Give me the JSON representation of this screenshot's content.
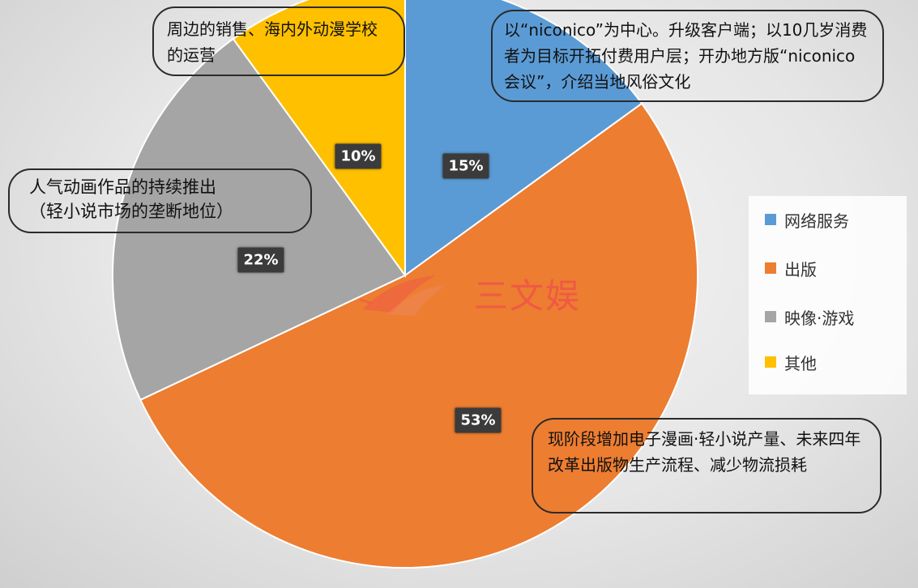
{
  "chart_data": {
    "type": "pie",
    "categories": [
      "网络服务",
      "出版",
      "映像·游戏",
      "其他"
    ],
    "values": [
      15,
      53,
      22,
      10
    ],
    "value_labels": [
      "15%",
      "53%",
      "22%",
      "10%"
    ],
    "colors": [
      "#5b9bd5",
      "#ed7d31",
      "#a5a5a5",
      "#ffc000"
    ],
    "start_angle_deg": 0,
    "direction": "clockwise",
    "legend_position": "right",
    "annotations": [
      "以“niconico”为中心。升级客户端；以10几岁消费者为目标开拓付费用户层；开办地方版“niconico会议”，介绍当地风俗文化",
      "现阶段增加电子漫画·轻小说产量、未来四年改革出版物生产流程、减少物流损耗",
      "人气动画作品的持续推出\n（轻小说市场的垄断地位）",
      "周边的销售、海内外动漫学校的运营"
    ]
  },
  "watermark": {
    "text": "三文娱",
    "color": "#ef5a44"
  }
}
